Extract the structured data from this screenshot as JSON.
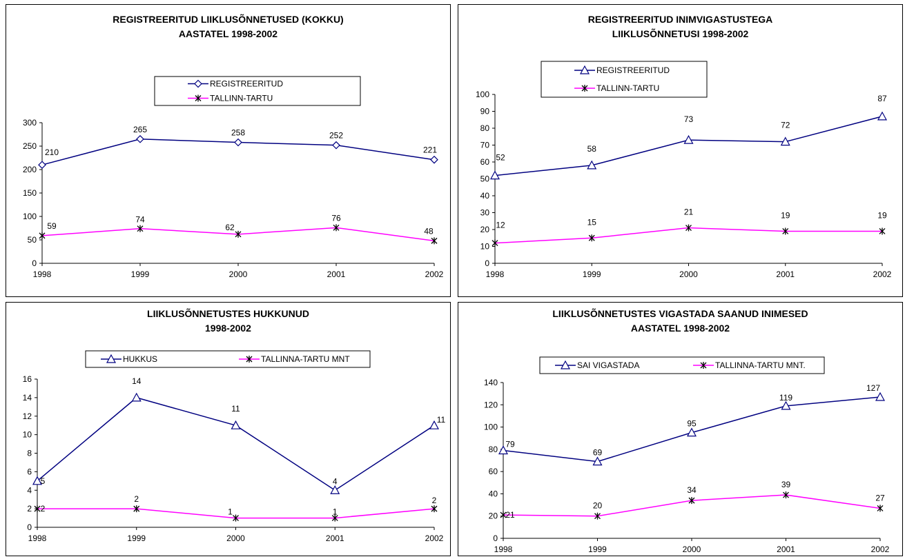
{
  "colors": {
    "series1": "#000080",
    "series2": "#FF00FF"
  },
  "chart_data": [
    {
      "type": "line",
      "title": [
        "REGISTREERITUD LIIKLUSÕNNETUSED (KOKKU)",
        "AASTATEL 1998-2002"
      ],
      "categories": [
        "1998",
        "1999",
        "2000",
        "2001",
        "2002"
      ],
      "ylim": [
        0,
        300
      ],
      "yticks": [
        0,
        50,
        100,
        150,
        200,
        250,
        300
      ],
      "legend_position": "top-center",
      "legend_layout": "vertical",
      "series": [
        {
          "name": "REGISTREERITUD",
          "marker": "diamond",
          "values": [
            210,
            265,
            258,
            252,
            221
          ]
        },
        {
          "name": "TALLINN-TARTU",
          "marker": "star",
          "values": [
            59,
            74,
            62,
            76,
            48
          ]
        }
      ]
    },
    {
      "type": "line",
      "title": [
        "REGISTREERITUD INIMVIGASTUSTEGA",
        "LIIKLUSÕNNETUSI 1998-2002"
      ],
      "categories": [
        "1998",
        "1999",
        "2000",
        "2001",
        "2002"
      ],
      "ylim": [
        0,
        100
      ],
      "yticks": [
        0,
        10,
        20,
        30,
        40,
        50,
        60,
        70,
        80,
        90,
        100
      ],
      "legend_position": "top-left",
      "legend_layout": "vertical",
      "series": [
        {
          "name": "REGISTREERITUD",
          "marker": "triangle",
          "values": [
            52,
            58,
            73,
            72,
            87
          ]
        },
        {
          "name": "TALLINN-TARTU",
          "marker": "star",
          "values": [
            12,
            15,
            21,
            19,
            19
          ]
        }
      ]
    },
    {
      "type": "line",
      "title": [
        "LIIKLUSÕNNETUSTES HUKKUNUD",
        "1998-2002"
      ],
      "categories": [
        "1998",
        "1999",
        "2000",
        "2001",
        "2002"
      ],
      "ylim": [
        0,
        16
      ],
      "yticks": [
        0,
        2,
        4,
        6,
        8,
        10,
        12,
        14,
        16
      ],
      "legend_position": "top-center",
      "legend_layout": "horizontal",
      "series": [
        {
          "name": "HUKKUS",
          "marker": "triangle",
          "values": [
            5,
            14,
            11,
            4,
            11
          ]
        },
        {
          "name": "TALLINNA-TARTU MNT",
          "marker": "star",
          "values": [
            2,
            2,
            1,
            1,
            2
          ]
        }
      ]
    },
    {
      "type": "line",
      "title": [
        "LIIKLUSÕNNETUSTES VIGASTADA SAANUD INIMESED",
        "AASTATEL 1998-2002"
      ],
      "categories": [
        "1998",
        "1999",
        "2000",
        "2001",
        "2002"
      ],
      "ylim": [
        0,
        140
      ],
      "yticks": [
        0,
        20,
        40,
        60,
        80,
        100,
        120,
        140
      ],
      "legend_position": "top-center",
      "legend_layout": "horizontal",
      "series": [
        {
          "name": "SAI VIGASTADA",
          "marker": "triangle",
          "values": [
            79,
            69,
            95,
            119,
            127
          ]
        },
        {
          "name": "TALLINNA-TARTU MNT.",
          "marker": "star",
          "values": [
            21,
            20,
            34,
            39,
            27
          ]
        }
      ]
    }
  ]
}
